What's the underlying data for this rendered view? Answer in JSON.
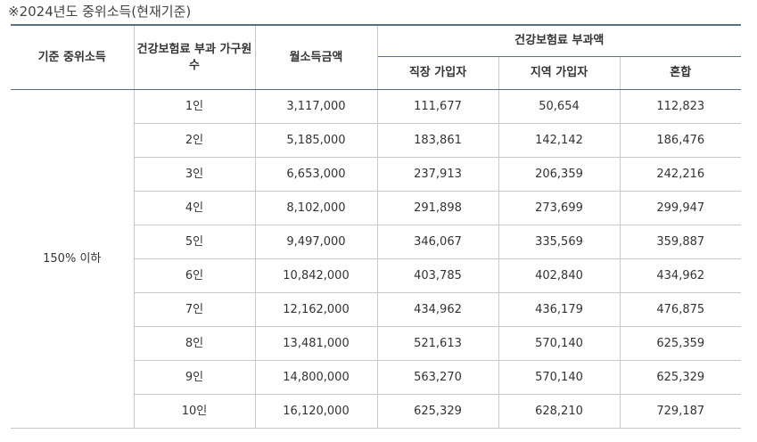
{
  "caption": "※2024년도 중위소득(현재기준)",
  "headers": {
    "median_income": "기준 중위소득",
    "household": "건강보험료 부과 가구원 수",
    "monthly_income": "월소득금액",
    "premium_group": "건강보험료 부과액",
    "employee": "직장 가입자",
    "regional": "지역 가입자",
    "mixed": "혼합"
  },
  "range_label": "150% 이하",
  "rows": [
    {
      "household": "1인",
      "monthly_income": "3,117,000",
      "employee": "111,677",
      "regional": "50,654",
      "mixed": "112,823"
    },
    {
      "household": "2인",
      "monthly_income": "5,185,000",
      "employee": "183,861",
      "regional": "142,142",
      "mixed": "186,476"
    },
    {
      "household": "3인",
      "monthly_income": "6,653,000",
      "employee": "237,913",
      "regional": "206,359",
      "mixed": "242,216"
    },
    {
      "household": "4인",
      "monthly_income": "8,102,000",
      "employee": "291,898",
      "regional": "273,699",
      "mixed": "299,947"
    },
    {
      "household": "5인",
      "monthly_income": "9,497,000",
      "employee": "346,067",
      "regional": "335,569",
      "mixed": "359,887"
    },
    {
      "household": "6인",
      "monthly_income": "10,842,000",
      "employee": "403,785",
      "regional": "402,840",
      "mixed": "434,962"
    },
    {
      "household": "7인",
      "monthly_income": "12,162,000",
      "employee": "434,962",
      "regional": "436,179",
      "mixed": "476,875"
    },
    {
      "household": "8인",
      "monthly_income": "13,481,000",
      "employee": "521,613",
      "regional": "570,140",
      "mixed": "625,359"
    },
    {
      "household": "9인",
      "monthly_income": "14,800,000",
      "employee": "563,270",
      "regional": "570,140",
      "mixed": "625,329"
    },
    {
      "household": "10인",
      "monthly_income": "16,120,000",
      "employee": "625,329",
      "regional": "628,210",
      "mixed": "729,187"
    }
  ]
}
